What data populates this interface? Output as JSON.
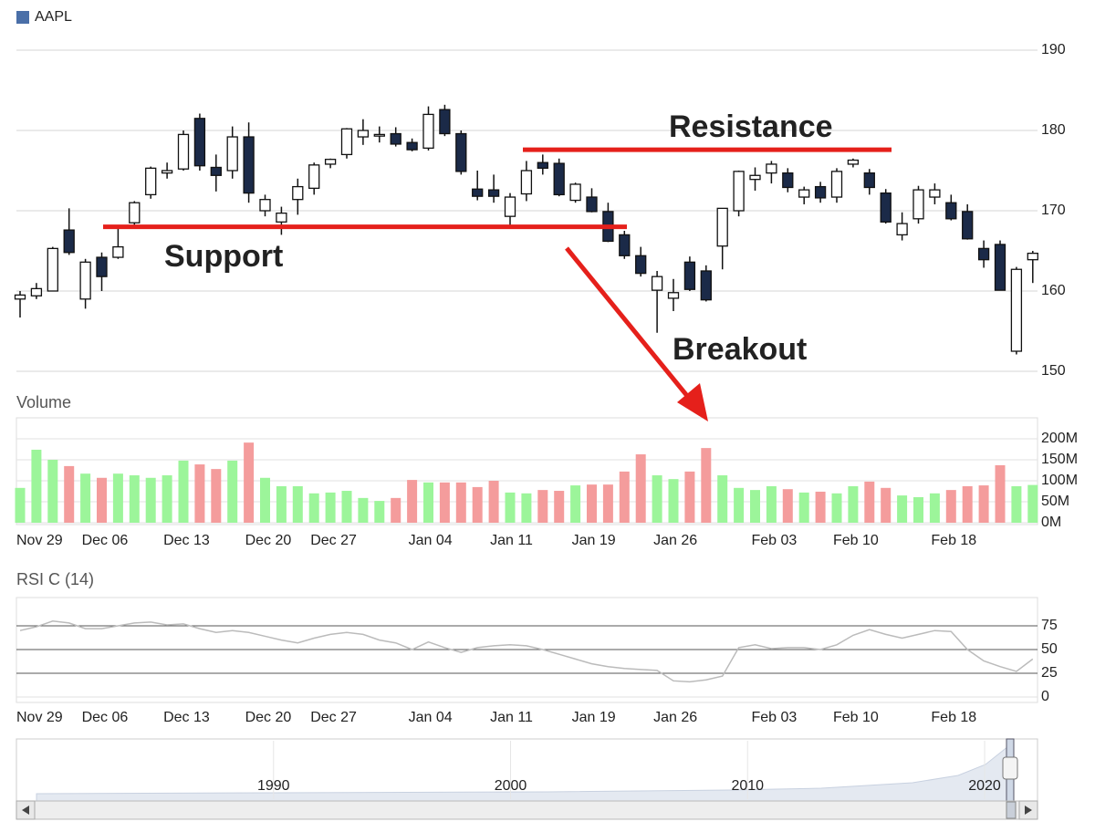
{
  "chart_data": [
    {
      "type": "candlestick",
      "categories": [
        "Nov 29",
        null,
        null,
        null,
        "Dec 06",
        null,
        null,
        null,
        null,
        "Dec 13",
        null,
        null,
        null,
        null,
        "Dec 20",
        null,
        null,
        null,
        "Dec 27",
        null,
        null,
        null,
        null,
        null,
        "Jan 04",
        null,
        null,
        null,
        null,
        "Jan 11",
        null,
        null,
        null,
        null,
        "Jan 19",
        null,
        null,
        null,
        null,
        "Jan 26",
        null,
        null,
        null,
        null,
        null,
        "Feb 03",
        null,
        null,
        null,
        null,
        "Feb 10",
        null,
        null,
        null,
        null,
        null,
        "Feb 18",
        null,
        null,
        null,
        null,
        null,
        null
      ],
      "series": [
        {
          "name": "AAPL",
          "color": "#4a6fa8",
          "open": [
            159,
            159.4,
            160,
            167.6,
            159,
            164.2,
            164.2,
            168.5,
            172,
            174.7,
            175.2,
            181.5,
            175.4,
            175,
            179.2,
            170,
            168.6,
            171.4,
            172.8,
            175.8,
            177,
            179.2,
            179.3,
            179.6,
            178.5,
            177.8,
            182.6,
            179.6,
            172.7,
            172.6,
            169.3,
            172.1,
            176,
            175.9,
            171.3,
            171.7,
            169.9,
            167,
            164.4,
            160.1,
            159.1,
            163.6,
            162.5,
            165.6,
            170,
            173.9,
            174.7,
            174.7,
            171.7,
            173,
            171.7,
            175.8,
            174.7,
            172.2,
            167,
            169,
            171.7,
            171,
            169.9,
            165.3,
            165.8,
            152.5,
            163.9
          ],
          "high": [
            160,
            161,
            165.5,
            170.3,
            164,
            164.8,
            168,
            171.2,
            175.5,
            176,
            180,
            182.1,
            177,
            180.5,
            181,
            172,
            170.5,
            174,
            176,
            176.5,
            180.3,
            181.4,
            180.5,
            180.4,
            179,
            183,
            183.2,
            180,
            175,
            174.5,
            172.2,
            176.2,
            177,
            176.5,
            173.5,
            172.8,
            171,
            167.5,
            165.5,
            162.5,
            161.5,
            164.3,
            163.2,
            170.3,
            175,
            175.4,
            176.2,
            175.3,
            173,
            173.6,
            175.3,
            176.5,
            175.2,
            172.7,
            169.8,
            173.1,
            173.4,
            172,
            170.8,
            166.3,
            166.3,
            163,
            165
          ],
          "low": [
            156.7,
            159,
            160,
            164.5,
            157.8,
            160,
            164,
            168,
            171.5,
            174,
            175,
            175,
            172.4,
            174,
            171,
            169.3,
            167,
            169.5,
            172,
            175.3,
            176.5,
            178.2,
            178.5,
            178,
            177.4,
            177.5,
            179.3,
            174.5,
            171.3,
            171,
            168.2,
            171.2,
            174.5,
            171.8,
            171,
            169.8,
            166.1,
            164,
            161.8,
            154.8,
            157.5,
            160,
            158.7,
            162.7,
            169.3,
            172.5,
            173.4,
            172.3,
            170.8,
            171,
            171,
            175.4,
            172,
            168.4,
            166.3,
            168.4,
            170.8,
            168.8,
            166.4,
            162.9,
            160.1,
            152.1,
            161
          ],
          "close": [
            159.5,
            160.3,
            165.3,
            164.8,
            163.6,
            161.8,
            165.5,
            171,
            175.3,
            175,
            179.5,
            175.6,
            174.4,
            179.2,
            172.2,
            171.4,
            169.7,
            173,
            175.7,
            176.4,
            180.2,
            180,
            179.5,
            178.3,
            177.6,
            182,
            179.6,
            174.9,
            171.8,
            171.8,
            171.7,
            175,
            175.3,
            172,
            173.3,
            169.9,
            166.2,
            164.4,
            162.2,
            161.8,
            159.8,
            160.2,
            158.9,
            170.3,
            174.9,
            174.4,
            175.8,
            172.9,
            172.6,
            171.6,
            174.9,
            176.3,
            172.9,
            168.6,
            168.4,
            172.6,
            172.6,
            169,
            166.5,
            163.9,
            160.1,
            162.7,
            164.7
          ]
        }
      ],
      "up_color": "#ffffff",
      "down_color": "#1b2a48",
      "ylim": [
        150,
        190
      ],
      "yticks": [
        150,
        160,
        170,
        180,
        190
      ],
      "grid": true,
      "annotations": [
        {
          "text": "Support",
          "value": 168
        },
        {
          "text": "Resistance",
          "value": 177.6
        },
        {
          "text": "Breakout"
        }
      ],
      "annotation_color": "#e5201b"
    },
    {
      "type": "bar",
      "title": "Volume",
      "values": [
        83,
        174,
        150,
        135,
        117,
        107,
        117,
        113,
        107,
        113,
        148,
        139,
        128,
        148,
        191,
        107,
        87,
        87,
        70,
        72,
        76,
        59,
        52,
        59,
        102,
        96,
        96,
        96,
        85,
        100,
        72,
        70,
        78,
        76,
        89,
        91,
        91,
        122,
        163,
        113,
        104,
        122,
        178,
        113,
        83,
        78,
        87,
        80,
        72,
        74,
        70,
        87,
        98,
        83,
        65,
        61,
        70,
        78,
        87,
        89,
        137,
        87,
        90
      ],
      "up_color": "#9cf59a",
      "down_color": "#f49c9c",
      "ylim": [
        0,
        200
      ],
      "yticks": [
        {
          "value": 0,
          "label": "0M"
        },
        {
          "value": 50,
          "label": "50M"
        },
        {
          "value": 100,
          "label": "100M"
        },
        {
          "value": 150,
          "label": "150M"
        },
        {
          "value": 200,
          "label": "200M"
        }
      ],
      "grid": true
    },
    {
      "type": "line",
      "title": "RSI C (14)",
      "values": [
        70,
        74,
        80,
        78,
        72,
        72,
        75,
        78,
        79,
        76,
        77,
        72,
        68,
        70,
        68,
        64,
        60,
        57,
        62,
        66,
        68,
        66,
        60,
        57,
        50,
        58,
        52,
        47,
        52,
        54,
        55,
        54,
        50,
        45,
        40,
        35,
        32,
        30,
        29,
        28,
        17,
        16,
        18,
        22,
        52,
        55,
        51,
        52,
        52,
        50,
        55,
        65,
        71,
        66,
        62,
        66,
        70,
        69,
        50,
        38,
        32,
        27,
        40
      ],
      "color": "#bbbbbb",
      "ylim": [
        0,
        100
      ],
      "yticks": [
        0,
        25,
        50,
        75
      ],
      "grid": true
    },
    {
      "type": "navigator",
      "xlim": [
        1980,
        2021
      ],
      "xticks": [
        1990,
        2000,
        2010,
        2020
      ]
    }
  ]
}
